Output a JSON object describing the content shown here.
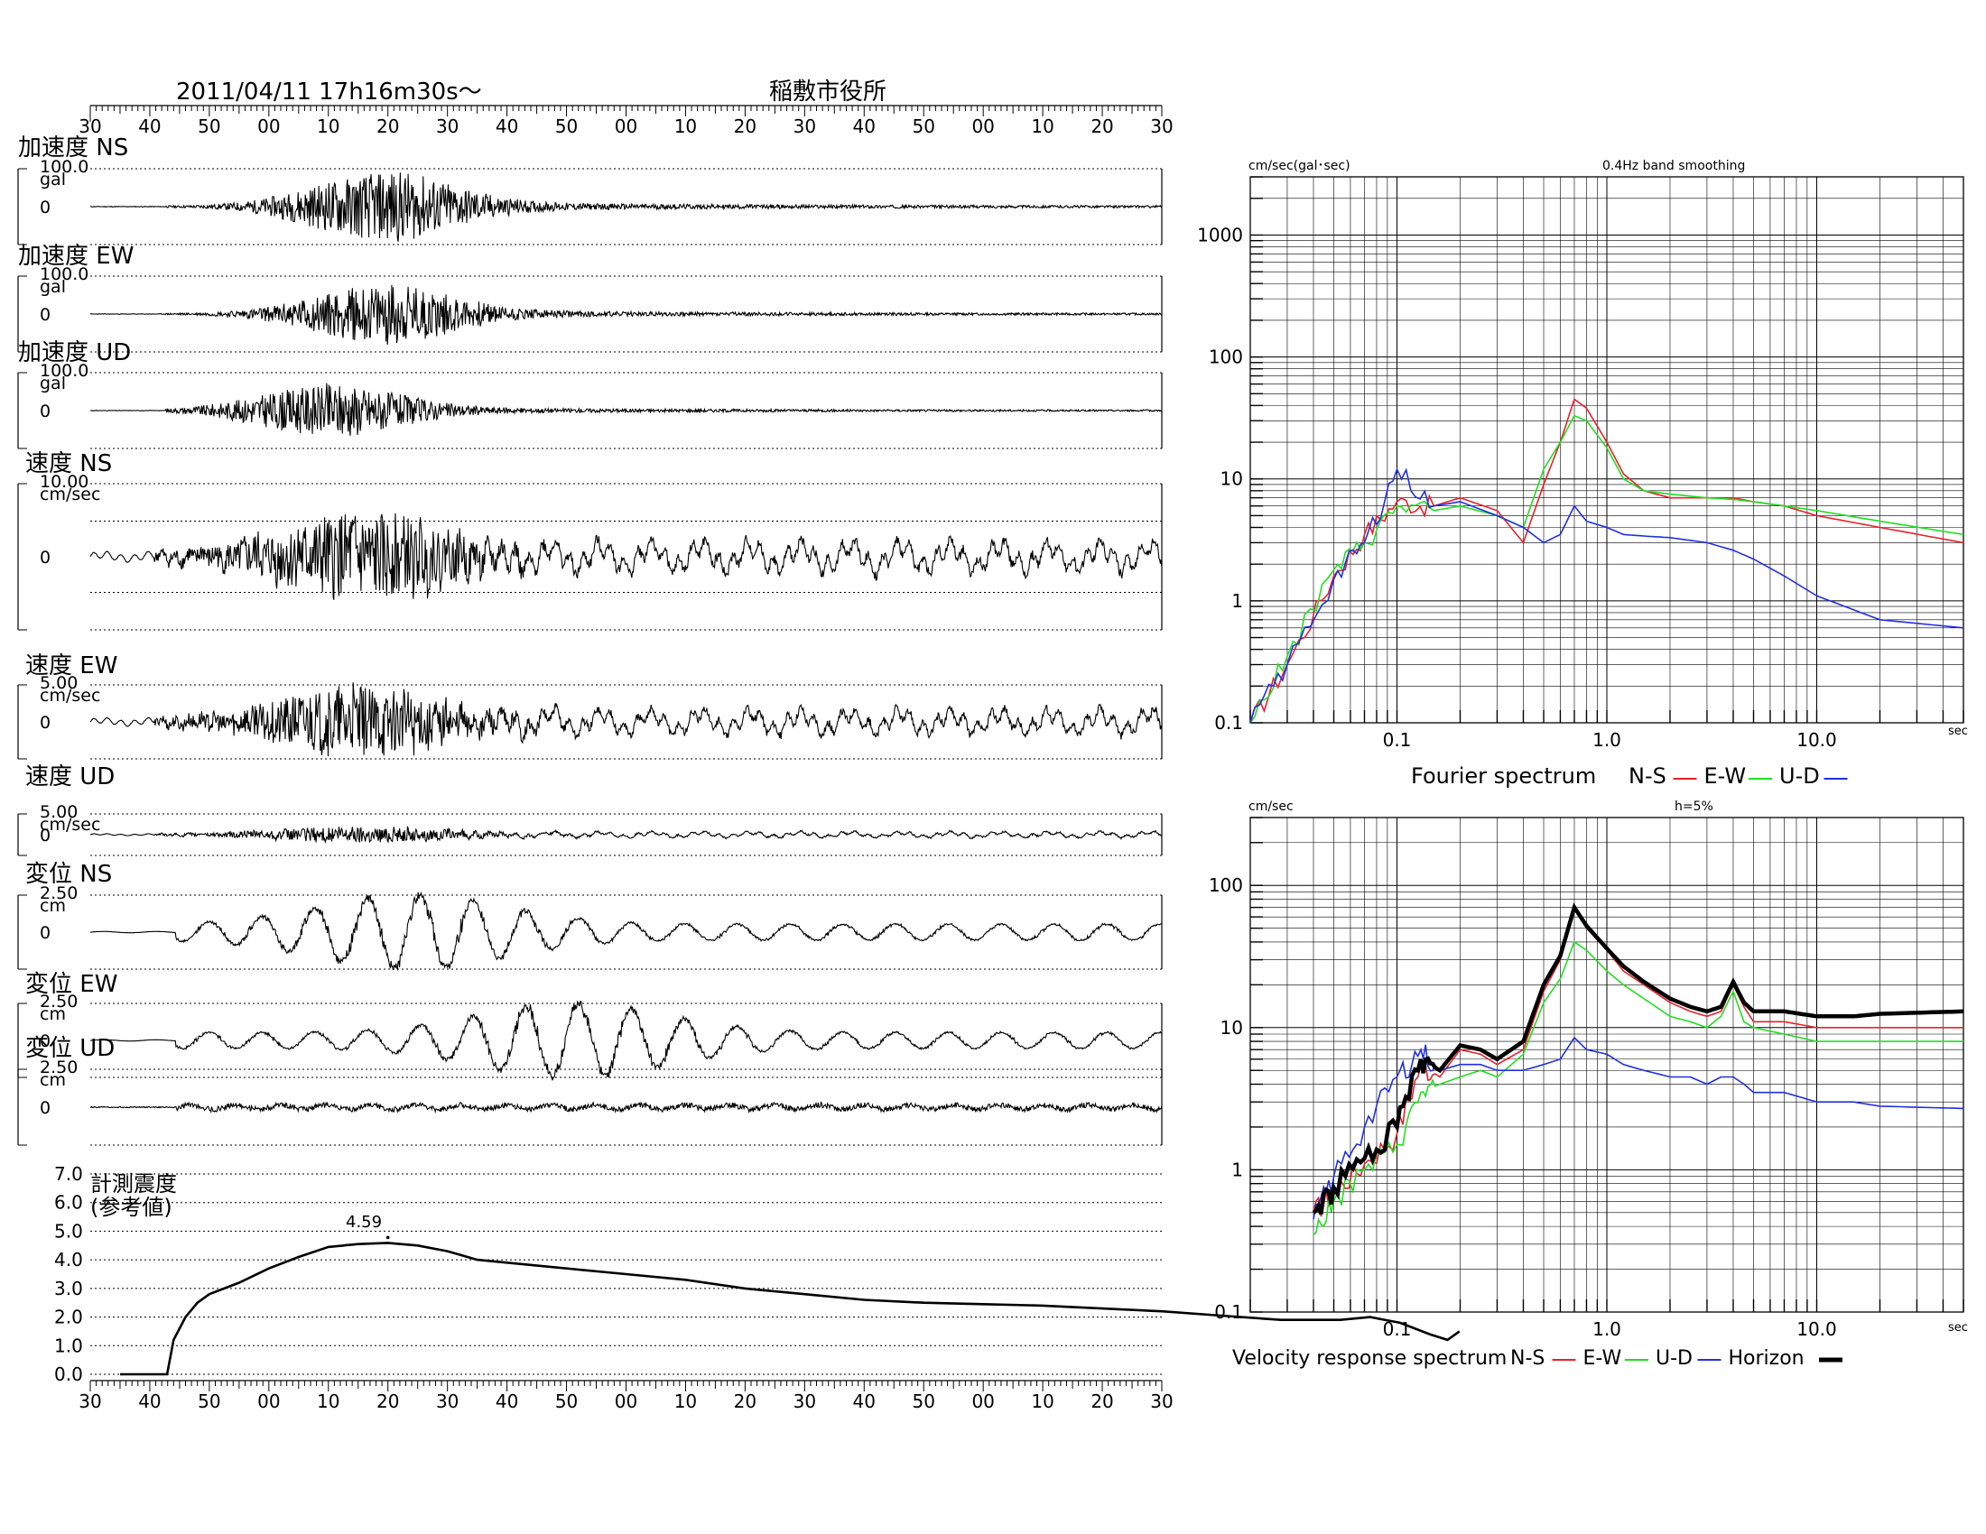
{
  "header": {
    "datetime": "2011/04/11  17h16m30s～",
    "station": "稲敷市役所"
  },
  "time_axis_ticks": [
    "30",
    "40",
    "50",
    "00",
    "10",
    "20",
    "30",
    "40",
    "50",
    "00",
    "10",
    "20",
    "30",
    "40",
    "50",
    "00",
    "10",
    "20",
    "30"
  ],
  "waveform_panels": [
    {
      "label": "加速度 NS",
      "unit": "gal",
      "scale": "100.0",
      "zero": "0"
    },
    {
      "label": "加速度 EW",
      "unit": "gal",
      "scale": "100.0",
      "zero": "0"
    },
    {
      "label": "加速度 UD",
      "unit": "gal",
      "scale": "100.0",
      "zero": "0"
    },
    {
      "label": "速度 NS",
      "unit": "cm/sec",
      "scale": "10.00",
      "zero": "0"
    },
    {
      "label": "速度 EW",
      "unit": "cm/sec",
      "scale": "5.00",
      "zero": "0"
    },
    {
      "label": "速度 UD",
      "unit": "cm/sec",
      "scale": "5.00",
      "zero": "0"
    },
    {
      "label": "変位 NS",
      "unit": "cm",
      "scale": "2.50",
      "zero": "0"
    },
    {
      "label": "変位 EW",
      "unit": "cm",
      "scale": "2.50",
      "zero": "0"
    },
    {
      "label": "変位 UD",
      "unit": "cm",
      "scale": "2.50",
      "zero": "0"
    }
  ],
  "intensity": {
    "title_line1": "計測震度",
    "title_line2": "(参考値)",
    "peak_label": "4.59",
    "y_ticks": [
      "7.0",
      "6.0",
      "5.0",
      "4.0",
      "3.0",
      "2.0",
      "1.0",
      "0.0"
    ]
  },
  "fourier": {
    "unit_label": "cm/sec(gal･sec)",
    "note": "0.4Hz band smoothing",
    "y_ticks": [
      "1000",
      "100",
      "10",
      "1",
      "0.1"
    ],
    "x_ticks": [
      "0.1",
      "1.0",
      "10.0"
    ],
    "x_unit": "sec",
    "caption": "Fourier spectrum",
    "legend": [
      "N-S",
      "E-W",
      "U-D"
    ]
  },
  "response": {
    "unit_label": "cm/sec",
    "note": "h=5%",
    "y_ticks": [
      "100",
      "10",
      "1",
      "0.1"
    ],
    "x_ticks": [
      "0.1",
      "1.0",
      "10.0"
    ],
    "x_unit": "sec",
    "caption": "Velocity response spectrum",
    "legend": [
      "N-S",
      "E-W",
      "U-D",
      "Horizon"
    ]
  },
  "colors": {
    "ns": "#e8202a",
    "ew": "#22dd22",
    "ud": "#2030e0",
    "horizon": "#000000"
  },
  "chart_data": [
    {
      "type": "line",
      "title": "計測震度 (参考値)",
      "x": [
        40,
        42.9,
        44,
        46,
        48,
        50,
        55,
        60,
        65,
        70,
        75,
        80,
        85,
        90,
        95,
        100,
        110,
        120,
        130,
        140,
        150,
        160,
        170,
        180,
        190,
        200,
        210,
        220,
        230,
        240,
        245,
        250,
        255,
        258,
        260
      ],
      "values": [
        0,
        0,
        1.2,
        2.0,
        2.5,
        2.8,
        3.2,
        3.7,
        4.1,
        4.45,
        4.55,
        4.59,
        4.5,
        4.3,
        4.0,
        3.9,
        3.7,
        3.5,
        3.3,
        3.0,
        2.8,
        2.6,
        2.5,
        2.45,
        2.4,
        2.3,
        2.2,
        2.05,
        1.9,
        1.9,
        2.0,
        1.8,
        1.4,
        1.2,
        1.5
      ],
      "ylim": [
        0,
        7
      ],
      "peak": 4.59
    },
    {
      "type": "line",
      "title": "Fourier spectrum",
      "log_x": true,
      "log_y": true,
      "xlim": [
        0.02,
        50
      ],
      "ylim": [
        0.1,
        3000
      ],
      "x": [
        0.02,
        0.03,
        0.05,
        0.07,
        0.1,
        0.15,
        0.2,
        0.3,
        0.4,
        0.5,
        0.6,
        0.7,
        0.8,
        1.0,
        1.2,
        1.5,
        2.0,
        3.0,
        4.0,
        5.0,
        7.0,
        10.0,
        20.0,
        50.0
      ],
      "series": [
        {
          "name": "N-S",
          "values": [
            0.1,
            0.3,
            1.6,
            3.5,
            6.5,
            6.0,
            7.0,
            5.5,
            3.0,
            9.0,
            20,
            45,
            38,
            20,
            11,
            8,
            7,
            7,
            7,
            6.5,
            6,
            5,
            4,
            3
          ]
        },
        {
          "name": "E-W",
          "values": [
            0.1,
            0.35,
            1.8,
            3.0,
            6.0,
            5.5,
            6.0,
            5.0,
            4.0,
            12,
            20,
            33,
            30,
            18,
            10,
            8,
            7.5,
            7,
            6.8,
            6.5,
            6,
            5.5,
            4.5,
            3.5
          ]
        },
        {
          "name": "U-D",
          "values": [
            0.1,
            0.3,
            1.5,
            3.0,
            12,
            6.0,
            6.5,
            5.0,
            4.0,
            3.0,
            3.5,
            6.0,
            4.5,
            4.0,
            3.5,
            3.4,
            3.3,
            3.0,
            2.6,
            2.2,
            1.6,
            1.1,
            0.7,
            0.6
          ]
        }
      ]
    },
    {
      "type": "line",
      "title": "Velocity response spectrum",
      "log_x": true,
      "log_y": true,
      "xlim": [
        0.02,
        50
      ],
      "ylim": [
        0.1,
        300
      ],
      "x": [
        0.04,
        0.05,
        0.07,
        0.1,
        0.13,
        0.16,
        0.2,
        0.25,
        0.3,
        0.4,
        0.5,
        0.6,
        0.7,
        0.8,
        1.0,
        1.2,
        1.5,
        2.0,
        2.5,
        3.0,
        3.5,
        4.0,
        4.5,
        5.0,
        7.0,
        10.0,
        15.0,
        20.0,
        50.0
      ],
      "series": [
        {
          "name": "N-S",
          "values": [
            0.5,
            0.7,
            1.1,
            1.8,
            5.5,
            4.5,
            7.0,
            6.5,
            5.5,
            7.0,
            18,
            30,
            68,
            50,
            35,
            25,
            20,
            15,
            13,
            12,
            13,
            20,
            14,
            11,
            11,
            10,
            10,
            10,
            10
          ]
        },
        {
          "name": "E-W",
          "values": [
            0.35,
            0.6,
            1.0,
            1.5,
            3.5,
            4.0,
            4.5,
            5.0,
            4.5,
            6.5,
            15,
            22,
            40,
            35,
            25,
            20,
            16,
            12,
            11,
            10,
            12,
            18,
            11,
            10,
            9,
            8,
            8,
            8,
            8
          ]
        },
        {
          "name": "U-D",
          "values": [
            0.45,
            0.9,
            2.0,
            4.5,
            7.0,
            5.0,
            5.5,
            5.5,
            5.0,
            5.0,
            5.5,
            6.0,
            8.5,
            7.0,
            6.5,
            5.5,
            5.0,
            4.5,
            4.5,
            4.0,
            4.5,
            4.5,
            4.0,
            3.5,
            3.5,
            3.0,
            3.0,
            2.8,
            2.7
          ]
        },
        {
          "name": "Horizon",
          "values": [
            0.5,
            0.75,
            1.2,
            2.0,
            6.0,
            5.0,
            7.5,
            7.0,
            6.0,
            8.0,
            20,
            32,
            70,
            52,
            36,
            27,
            21,
            16,
            14,
            13,
            14,
            21,
            15,
            13,
            13,
            12,
            12,
            12.5,
            13
          ]
        }
      ]
    }
  ]
}
